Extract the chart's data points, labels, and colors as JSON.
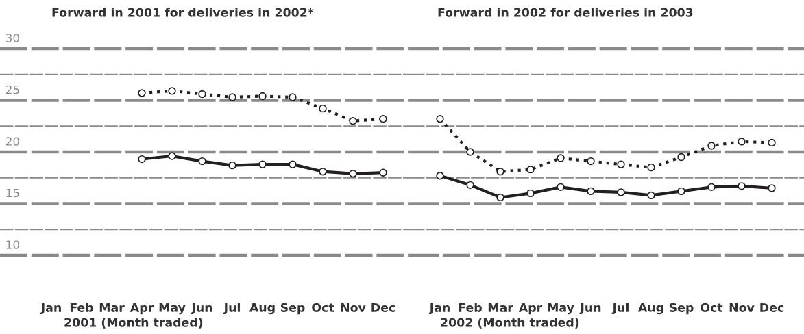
{
  "chart_data": [
    {
      "type": "line",
      "title": "Forward in 2001 for deliveries in 2002*",
      "xlabel": "2001 (Month traded)",
      "categories": [
        "Jan",
        "Feb",
        "Mar",
        "Apr",
        "May",
        "Jun",
        "Jul",
        "Aug",
        "Sep",
        "Oct",
        "Nov",
        "Dec"
      ],
      "series": [
        {
          "color": "#231f20",
          "line_style": "dotted",
          "values": [
            null,
            null,
            null,
            25.7,
            25.9,
            25.6,
            25.3,
            25.4,
            25.3,
            24.2,
            23.0,
            23.2
          ]
        },
        {
          "color": "#231f20",
          "line_style": "solid",
          "values": [
            null,
            null,
            null,
            19.3,
            19.6,
            19.1,
            18.7,
            18.8,
            18.8,
            18.1,
            17.9,
            18.0
          ]
        }
      ],
      "ylim": [
        10,
        30
      ],
      "yticks": [
        10,
        {
          "value": 12.5,
          "label": null
        },
        15,
        {
          "value": 17.5,
          "label": null
        },
        20,
        {
          "value": 22.5,
          "label": null
        },
        25,
        {
          "value": 27.5,
          "label": null
        },
        30
      ],
      "grid": "y",
      "marker": "circle"
    },
    {
      "type": "line",
      "title": "Forward in 2002 for deliveries in 2003",
      "xlabel": "2002 (Month traded)",
      "categories": [
        "Jan",
        "Feb",
        "Mar",
        "Apr",
        "May",
        "Jun",
        "Jul",
        "Aug",
        "Sep",
        "Oct",
        "Nov",
        "Dec"
      ],
      "series": [
        {
          "color": "#231f20",
          "line_style": "dotted",
          "values": [
            23.2,
            20.0,
            18.1,
            18.3,
            19.4,
            19.1,
            18.8,
            18.5,
            19.5,
            20.6,
            21.0,
            20.9
          ]
        },
        {
          "color": "#231f20",
          "line_style": "solid",
          "values": [
            17.7,
            16.8,
            15.6,
            16.0,
            16.6,
            16.2,
            16.1,
            15.8,
            16.2,
            16.6,
            16.7,
            16.5
          ]
        }
      ],
      "ylim": [
        10,
        30
      ],
      "yticks": [
        10,
        {
          "value": 12.5,
          "label": null
        },
        15,
        {
          "value": 17.5,
          "label": null
        },
        20,
        {
          "value": 22.5,
          "label": null
        },
        25,
        {
          "value": 27.5,
          "label": null
        },
        30
      ],
      "grid": "y",
      "marker": "circle",
      "tick_labels": "x"
    }
  ]
}
